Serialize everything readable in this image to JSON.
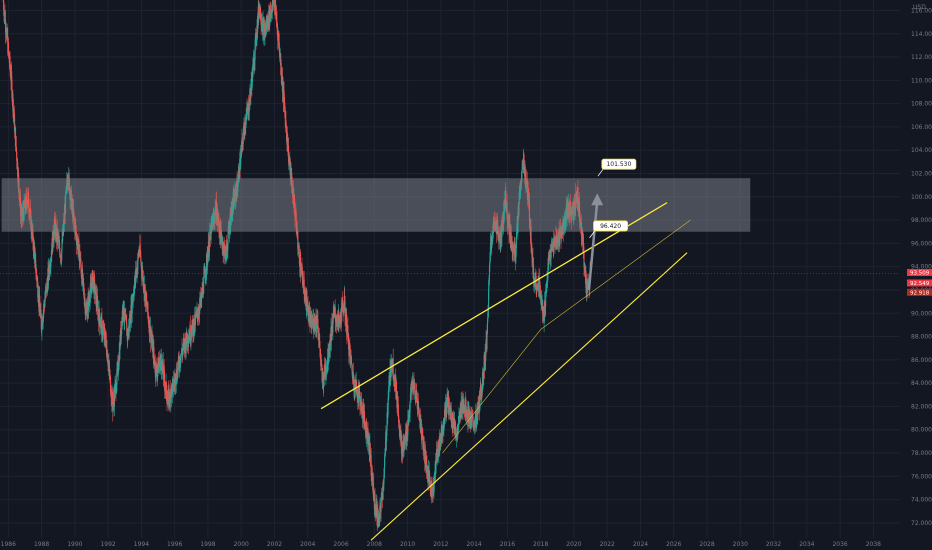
{
  "chart_data": {
    "type": "candlestick",
    "currency_label": "USD",
    "x_range": [
      1985.5,
      2039.6
    ],
    "y_range": [
      70.7,
      116.9
    ],
    "x_ticks": [
      1986,
      1988,
      1990,
      1992,
      1994,
      1996,
      1998,
      2000,
      2002,
      2004,
      2006,
      2008,
      2010,
      2012,
      2014,
      2016,
      2018,
      2020,
      2022,
      2024,
      2026,
      2028,
      2030,
      2032,
      2034,
      2036,
      2038
    ],
    "y_ticks": [
      "72.000",
      "74.000",
      "76.000",
      "78.000",
      "80.000",
      "82.000",
      "84.000",
      "86.000",
      "88.000",
      "90.000",
      "92.000",
      "94.000",
      "96.000",
      "98.000",
      "100.000",
      "102.000",
      "104.000",
      "106.000",
      "108.000",
      "110.000",
      "112.000",
      "114.000",
      "116.000"
    ],
    "price_path": [
      [
        1985.7,
        117.0
      ],
      [
        1986.2,
        110.0
      ],
      [
        1986.8,
        98.0
      ],
      [
        1987.2,
        100.0
      ],
      [
        1987.6,
        95.0
      ],
      [
        1988.0,
        89.0
      ],
      [
        1988.4,
        93.0
      ],
      [
        1988.8,
        97.5
      ],
      [
        1989.2,
        95.0
      ],
      [
        1989.6,
        102.0
      ],
      [
        1989.9,
        98.5
      ],
      [
        1990.3,
        95.0
      ],
      [
        1990.7,
        90.0
      ],
      [
        1991.1,
        93.0
      ],
      [
        1991.5,
        89.5
      ],
      [
        1991.9,
        87.5
      ],
      [
        1992.3,
        82.0
      ],
      [
        1992.6,
        85.0
      ],
      [
        1992.9,
        90.5
      ],
      [
        1993.2,
        88.0
      ],
      [
        1993.6,
        92.5
      ],
      [
        1993.9,
        95.5
      ],
      [
        1994.2,
        92.0
      ],
      [
        1994.6,
        88.0
      ],
      [
        1994.9,
        85.0
      ],
      [
        1995.2,
        86.0
      ],
      [
        1995.6,
        82.5
      ],
      [
        1996.0,
        84.0
      ],
      [
        1996.4,
        86.5
      ],
      [
        1996.8,
        88.0
      ],
      [
        1997.2,
        89.0
      ],
      [
        1997.6,
        91.0
      ],
      [
        1997.9,
        94.0
      ],
      [
        1998.2,
        97.0
      ],
      [
        1998.5,
        99.0
      ],
      [
        1998.8,
        96.5
      ],
      [
        1999.1,
        95.0
      ],
      [
        1999.4,
        98.5
      ],
      [
        1999.8,
        101.0
      ],
      [
        2000.2,
        106.0
      ],
      [
        2000.5,
        108.0
      ],
      [
        2000.8,
        112.0
      ],
      [
        2001.1,
        116.5
      ],
      [
        2001.4,
        114.0
      ],
      [
        2001.7,
        115.5
      ],
      [
        2002.0,
        117.0
      ],
      [
        2002.3,
        113.0
      ],
      [
        2002.6,
        108.0
      ],
      [
        2002.9,
        103.0
      ],
      [
        2003.2,
        99.5
      ],
      [
        2003.5,
        95.0
      ],
      [
        2003.8,
        92.0
      ],
      [
        2004.2,
        89.0
      ],
      [
        2004.6,
        89.5
      ],
      [
        2004.9,
        84.0
      ],
      [
        2005.2,
        86.0
      ],
      [
        2005.6,
        90.0
      ],
      [
        2005.9,
        89.0
      ],
      [
        2006.2,
        91.0
      ],
      [
        2006.5,
        87.0
      ],
      [
        2006.8,
        84.0
      ],
      [
        2007.1,
        83.0
      ],
      [
        2007.4,
        81.0
      ],
      [
        2007.7,
        79.0
      ],
      [
        2008.0,
        74.0
      ],
      [
        2008.3,
        72.0
      ],
      [
        2008.6,
        76.0
      ],
      [
        2008.9,
        84.0
      ],
      [
        2009.1,
        86.0
      ],
      [
        2009.4,
        82.5
      ],
      [
        2009.7,
        78.0
      ],
      [
        2010.0,
        80.0
      ],
      [
        2010.3,
        84.0
      ],
      [
        2010.6,
        82.5
      ],
      [
        2010.9,
        79.5
      ],
      [
        2011.2,
        76.5
      ],
      [
        2011.5,
        74.5
      ],
      [
        2011.8,
        78.0
      ],
      [
        2012.1,
        80.0
      ],
      [
        2012.4,
        82.5
      ],
      [
        2012.7,
        81.0
      ],
      [
        2013.0,
        79.5
      ],
      [
        2013.3,
        82.5
      ],
      [
        2013.6,
        81.5
      ],
      [
        2013.9,
        80.5
      ],
      [
        2014.2,
        81.0
      ],
      [
        2014.5,
        84.0
      ],
      [
        2014.8,
        88.0
      ],
      [
        2015.0,
        96.0
      ],
      [
        2015.3,
        98.0
      ],
      [
        2015.6,
        96.0
      ],
      [
        2015.9,
        100.0
      ],
      [
        2016.2,
        96.5
      ],
      [
        2016.5,
        95.0
      ],
      [
        2016.8,
        101.0
      ],
      [
        2017.0,
        103.0
      ],
      [
        2017.3,
        99.5
      ],
      [
        2017.6,
        93.0
      ],
      [
        2017.9,
        92.5
      ],
      [
        2018.2,
        89.5
      ],
      [
        2018.5,
        94.5
      ],
      [
        2018.8,
        96.0
      ],
      [
        2019.1,
        96.5
      ],
      [
        2019.4,
        97.5
      ],
      [
        2019.7,
        99.0
      ],
      [
        2020.0,
        98.5
      ],
      [
        2020.2,
        100.5
      ],
      [
        2020.5,
        97.0
      ],
      [
        2020.7,
        93.0
      ],
      [
        2020.85,
        92.0
      ],
      [
        2021.0,
        93.3
      ]
    ],
    "resistance_zone": {
      "low": 97.0,
      "high": 101.6,
      "x_start": 1985.6,
      "x_end": 2030.6
    },
    "trendlines": [
      {
        "color": "#ffeb3b",
        "width": 1.3,
        "points": [
          [
            2004.8,
            81.8
          ],
          [
            2025.6,
            99.5
          ]
        ]
      },
      {
        "color": "#ffeb3b",
        "width": 1.1,
        "points": [
          [
            2007.8,
            70.5
          ],
          [
            2026.8,
            95.2
          ]
        ]
      },
      {
        "color": "#c9b736",
        "width": 0.6,
        "points": [
          [
            2018.0,
            88.6
          ],
          [
            2027.0,
            98.0
          ]
        ]
      },
      {
        "color": "#c9b736",
        "width": 0.6,
        "points": [
          [
            2012.1,
            78.0
          ],
          [
            2018.0,
            88.6
          ]
        ]
      }
    ],
    "projection_arrow": {
      "from": [
        2020.9,
        92.0
      ],
      "to": [
        2021.4,
        100.3
      ]
    },
    "callouts": [
      {
        "text": "101.530",
        "x": 2021.8,
        "y": 102.8
      },
      {
        "text": "96.420",
        "x": 2021.3,
        "y": 97.5
      }
    ],
    "price_labels": [
      {
        "text": "93.509",
        "y": 93.5,
        "color": "#f23645"
      },
      {
        "text": "92.549",
        "y": 92.6,
        "color": "#f23645"
      },
      {
        "text": "92.918",
        "y": 91.8,
        "color": "#b2291f"
      }
    ],
    "current_price_line": {
      "y": 93.4,
      "color": "#f23645"
    },
    "colors": {
      "up": "#26a69a",
      "down": "#ef5350",
      "zone": "rgba(178,181,190,0.35)"
    }
  }
}
